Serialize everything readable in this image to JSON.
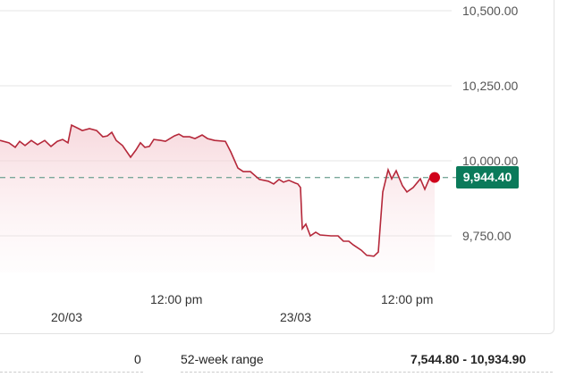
{
  "chart_data": {
    "type": "area",
    "title": "",
    "y_ticks": [
      "10,500.00",
      "10,250.00",
      "10,000.00",
      "9,750.00"
    ],
    "y_tick_values": [
      10500,
      10250,
      10000,
      9750
    ],
    "x_ticks": [
      {
        "time": "12:00 pm"
      },
      {
        "date": "20/03"
      },
      {
        "time": "12:00 pm"
      },
      {
        "date": "23/03"
      }
    ],
    "x_tick_labels": [
      "12:00 pm",
      "20/03",
      "12:00 pm",
      "23/03"
    ],
    "current_price": 9944.4,
    "current_price_label": "9,944.40",
    "line_color": "#b5283a",
    "badge_color": "#0b7a5a",
    "values": [
      10068,
      10060,
      10045,
      10065,
      10051,
      10068,
      10054,
      10068,
      10048,
      10065,
      10071,
      10060,
      10119,
      10107,
      10101,
      10107,
      10101,
      10080,
      10083,
      10095,
      10068,
      10051,
      10012,
      10036,
      10060,
      10045,
      10048,
      10071,
      10068,
      10065,
      10083,
      10089,
      10080,
      10080,
      10074,
      10086,
      10074,
      10068,
      10065,
      10030,
      9976,
      9964,
      9964,
      9938,
      9932,
      9923,
      9938,
      9929,
      9935,
      9926,
      9923,
      9911,
      9774,
      9789,
      9750,
      9762,
      9753,
      9750,
      9750,
      9732,
      9732,
      9720,
      9702,
      9685,
      9682,
      9696,
      9896,
      9970,
      9940,
      9967,
      9917,
      9896,
      9911,
      9940,
      9905,
      9940,
      9944
    ]
  },
  "stats": {
    "left_value": "0",
    "range_label": "52-week range",
    "range_value": "7,544.80 - 10,934.90"
  }
}
